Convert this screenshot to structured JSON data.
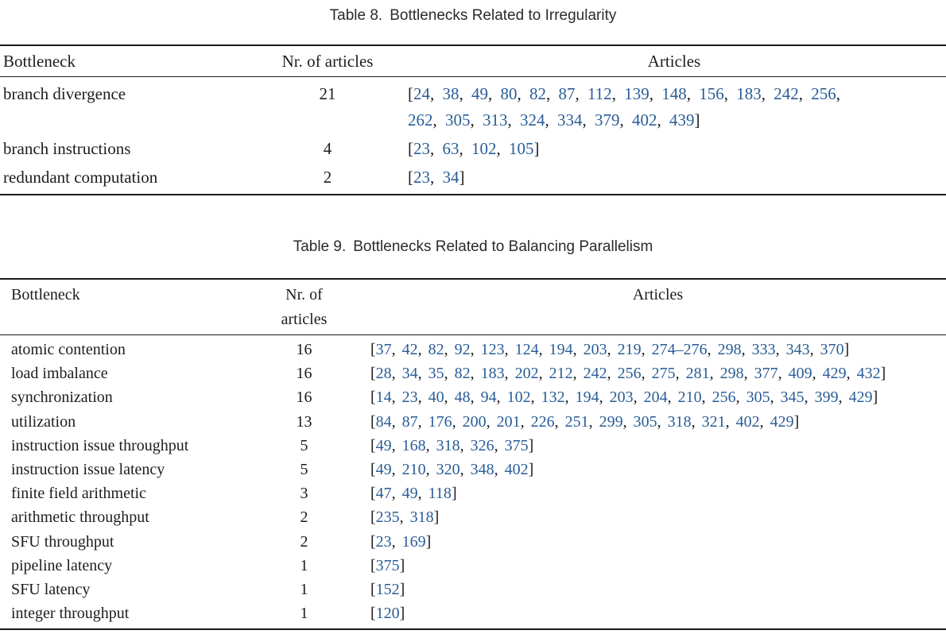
{
  "colors": {
    "citation_link": "#2a5d97",
    "rule": "#1a1a1a",
    "text": "#1d1d1d"
  },
  "citation_open": "[",
  "citation_separator": ", ",
  "citation_close": "]",
  "tables": [
    {
      "caption_label": "Table 8.",
      "caption_text": "Bottlenecks Related to Irregularity",
      "headers": {
        "bottleneck": "Bottleneck",
        "count_lines": [
          "Nr. of articles"
        ],
        "articles": "Articles"
      },
      "rows": [
        {
          "bottleneck": "branch divergence",
          "count": "21",
          "articles": [
            "24",
            "38",
            "49",
            "80",
            "82",
            "87",
            "112",
            "139",
            "148",
            "156",
            "183",
            "242",
            "256",
            "262",
            "305",
            "313",
            "324",
            "334",
            "379",
            "402",
            "439"
          ]
        },
        {
          "bottleneck": "branch instructions",
          "count": "4",
          "articles": [
            "23",
            "63",
            "102",
            "105"
          ]
        },
        {
          "bottleneck": "redundant computation",
          "count": "2",
          "articles": [
            "23",
            "34"
          ]
        }
      ]
    },
    {
      "caption_label": "Table 9.",
      "caption_text": "Bottlenecks Related to Balancing Parallelism",
      "headers": {
        "bottleneck": "Bottleneck",
        "count_lines": [
          "Nr. of",
          "articles"
        ],
        "articles": "Articles"
      },
      "rows": [
        {
          "bottleneck": "atomic contention",
          "count": "16",
          "articles": [
            "37",
            "42",
            "82",
            "92",
            "123",
            "124",
            "194",
            "203",
            "219",
            "274–276",
            "298",
            "333",
            "343",
            "370"
          ]
        },
        {
          "bottleneck": "load imbalance",
          "count": "16",
          "articles": [
            "28",
            "34",
            "35",
            "82",
            "183",
            "202",
            "212",
            "242",
            "256",
            "275",
            "281",
            "298",
            "377",
            "409",
            "429",
            "432"
          ]
        },
        {
          "bottleneck": "synchronization",
          "count": "16",
          "articles": [
            "14",
            "23",
            "40",
            "48",
            "94",
            "102",
            "132",
            "194",
            "203",
            "204",
            "210",
            "256",
            "305",
            "345",
            "399",
            "429"
          ]
        },
        {
          "bottleneck": "utilization",
          "count": "13",
          "articles": [
            "84",
            "87",
            "176",
            "200",
            "201",
            "226",
            "251",
            "299",
            "305",
            "318",
            "321",
            "402",
            "429"
          ]
        },
        {
          "bottleneck": "instruction issue throughput",
          "count": "5",
          "articles": [
            "49",
            "168",
            "318",
            "326",
            "375"
          ]
        },
        {
          "bottleneck": "instruction issue latency",
          "count": "5",
          "articles": [
            "49",
            "210",
            "320",
            "348",
            "402"
          ]
        },
        {
          "bottleneck": "finite field arithmetic",
          "count": "3",
          "articles": [
            "47",
            "49",
            "118"
          ]
        },
        {
          "bottleneck": "arithmetic throughput",
          "count": "2",
          "articles": [
            "235",
            "318"
          ]
        },
        {
          "bottleneck": "SFU throughput",
          "count": "2",
          "articles": [
            "23",
            "169"
          ]
        },
        {
          "bottleneck": "pipeline latency",
          "count": "1",
          "articles": [
            "375"
          ]
        },
        {
          "bottleneck": "SFU latency",
          "count": "1",
          "articles": [
            "152"
          ]
        },
        {
          "bottleneck": "integer throughput",
          "count": "1",
          "articles": [
            "120"
          ]
        }
      ]
    }
  ]
}
